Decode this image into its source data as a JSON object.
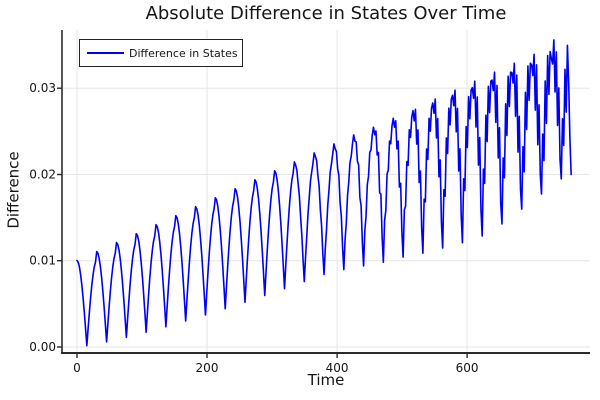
{
  "colors": {
    "line": "#0000f5",
    "grid": "#e6e6e6",
    "axis": "#2a2a2a",
    "text": "#151515",
    "background": "#ffffff",
    "legend_border": "#222222"
  },
  "chart_data": {
    "type": "line",
    "title": "Absolute Difference in States Over Time",
    "xlabel": "Time",
    "ylabel": "Difference",
    "legend_entries": [
      "Difference in States"
    ],
    "legend_position": "top-left",
    "grid": true,
    "xlim": [
      -23,
      789
    ],
    "ylim": [
      -0.0007,
      0.03675
    ],
    "x_ticks": [
      0,
      200,
      400,
      600
    ],
    "x_tick_labels": [
      "0",
      "200",
      "400",
      "600"
    ],
    "y_ticks": [
      0,
      0.01,
      0.02,
      0.03
    ],
    "y_tick_labels": [
      "0.00",
      "0.01",
      "0.02",
      "0.03"
    ],
    "series": [
      {
        "name": "Difference in States",
        "color": "#0000f5",
        "x_start": 0,
        "x_step": 1.9,
        "y": [
          0.01002,
          0.00983,
          0.00927,
          0.00835,
          0.00713,
          0.00564,
          0.00393,
          0.00208,
          0.00015,
          0.00208,
          0.00393,
          0.00564,
          0.00713,
          0.00835,
          0.00927,
          0.00983,
          0.01106,
          0.01086,
          0.01026,
          0.00929,
          0.00799,
          0.00641,
          0.0046,
          0.00263,
          0.00059,
          0.00263,
          0.0046,
          0.00641,
          0.00799,
          0.00929,
          0.01026,
          0.01086,
          0.0121,
          0.01189,
          0.01127,
          0.01024,
          0.00888,
          0.00722,
          0.00532,
          0.00326,
          0.00112,
          0.00326,
          0.00532,
          0.00722,
          0.00888,
          0.01024,
          0.01127,
          0.01189,
          0.01314,
          0.01292,
          0.01227,
          0.01121,
          0.00979,
          0.00807,
          0.00609,
          0.00394,
          0.00171,
          0.00394,
          0.00609,
          0.00807,
          0.00979,
          0.01121,
          0.01227,
          0.01292,
          0.01418,
          0.01395,
          0.01328,
          0.01218,
          0.01071,
          0.00892,
          0.00687,
          0.00465,
          0.00234,
          0.00465,
          0.00687,
          0.00892,
          0.01071,
          0.01218,
          0.01328,
          0.01395,
          0.01522,
          0.01499,
          0.01429,
          0.01316,
          0.01164,
          0.0098,
          0.00769,
          0.00539,
          0.00301,
          0.00539,
          0.00769,
          0.0098,
          0.01164,
          0.01316,
          0.01429,
          0.01499,
          0.01626,
          0.01602,
          0.01531,
          0.01414,
          0.01258,
          0.01069,
          0.00852,
          0.00616,
          0.00371,
          0.00616,
          0.00852,
          0.01069,
          0.01258,
          0.01414,
          0.01531,
          0.01602,
          0.0173,
          0.01706,
          0.01632,
          0.01513,
          0.01353,
          0.01159,
          0.00936,
          0.00695,
          0.00444,
          0.00695,
          0.00936,
          0.01159,
          0.01353,
          0.01513,
          0.01632,
          0.01706,
          0.01834,
          0.01809,
          0.01734,
          0.01612,
          0.01449,
          0.0125,
          0.01023,
          0.00775,
          0.00519,
          0.00775,
          0.01023,
          0.0125,
          0.01449,
          0.01612,
          0.01734,
          0.01809,
          0.01938,
          0.01913,
          0.01836,
          0.01711,
          0.01545,
          0.01343,
          0.01111,
          0.00859,
          0.00597,
          0.00859,
          0.01111,
          0.01343,
          0.01545,
          0.01711,
          0.01836,
          0.01913,
          0.02042,
          0.02016,
          0.01938,
          0.01811,
          0.01642,
          0.01436,
          0.01199,
          0.00942,
          0.00676,
          0.00942,
          0.01199,
          0.01436,
          0.01642,
          0.01811,
          0.01938,
          0.02016,
          0.02146,
          0.02111,
          0.02049,
          0.01896,
          0.01757,
          0.01514,
          0.01299,
          0.01015,
          0.00758,
          0.01036,
          0.01279,
          0.01542,
          0.0173,
          0.01924,
          0.02028,
          0.02125,
          0.0225,
          0.02208,
          0.02159,
          0.01989,
          0.0187,
          0.01595,
          0.01405,
          0.01088,
          0.00841,
          0.01137,
          0.01362,
          0.01644,
          0.0182,
          0.02032,
          0.02123,
          0.02236,
          0.02354,
          0.02297,
          0.02268,
          0.02068,
          0.0199,
          0.01669,
          0.01512,
          0.01154,
          0.00897,
          0.0124,
          0.0144,
          0.01754,
          0.01911,
          0.0214,
          0.02211,
          0.02354,
          0.02458,
          0.02386,
          0.02379,
          0.02154,
          0.02111,
          0.01735,
          0.01634,
          0.01214,
          0.0094,
          0.01345,
          0.01518,
          0.0188,
          0.01981,
          0.02256,
          0.02284,
          0.02458,
          0.02547,
          0.0246,
          0.02504,
          0.02226,
          0.02255,
          0.01787,
          0.01773,
          0.01275,
          0.00983,
          0.01466,
          0.01582,
          0.02006,
          0.0205,
          0.02387,
          0.02357,
          0.02562,
          0.02651,
          0.02548,
          0.02622,
          0.02297,
          0.02386,
          0.01854,
          0.01898,
          0.01338,
          0.01042,
          0.01589,
          0.01633,
          0.02149,
          0.02105,
          0.02518,
          0.0243,
          0.02666,
          0.0274,
          0.02621,
          0.02755,
          0.02353,
          0.02517,
          0.01906,
          0.0204,
          0.01385,
          0.01087,
          0.01713,
          0.01683,
          0.02294,
          0.02174,
          0.02651,
          0.02502,
          0.0277,
          0.02829,
          0.02709,
          0.02874,
          0.02424,
          0.02649,
          0.01973,
          0.02169,
          0.01448,
          0.01148,
          0.01823,
          0.01748,
          0.02424,
          0.02244,
          0.02769,
          0.02574,
          0.02874,
          0.02918,
          0.02797,
          0.02978,
          0.02494,
          0.02766,
          0.02041,
          0.02298,
          0.01526,
          0.01209,
          0.0195,
          0.01814,
          0.02555,
          0.02313,
          0.02902,
          0.02645,
          0.02978,
          0.03006,
          0.02884,
          0.03082,
          0.0255,
          0.02899,
          0.02109,
          0.02428,
          0.01591,
          0.01287,
          0.02063,
          0.01896,
          0.02687,
          0.02382,
          0.03021,
          0.02717,
          0.03082,
          0.03094,
          0.02972,
          0.03186,
          0.02605,
          0.03033,
          0.02192,
          0.02543,
          0.01671,
          0.01427,
          0.02192,
          0.01962,
          0.02819,
          0.02452,
          0.0314,
          0.02788,
          0.03186,
          0.03182,
          0.03059,
          0.0329,
          0.02675,
          0.03152,
          0.0226,
          0.02675,
          0.0183,
          0.01599,
          0.02322,
          0.0203,
          0.02952,
          0.02522,
          0.03259,
          0.0286,
          0.0329,
          0.03271,
          0.03147,
          0.03394,
          0.02746,
          0.03271,
          0.02345,
          0.02808,
          0.02005,
          0.01774,
          0.02468,
          0.0216,
          0.03085,
          0.02592,
          0.03379,
          0.02931,
          0.03425,
          0.03343,
          0.03281,
          0.0356,
          0.02956,
          0.03421,
          0.02569,
          0.03003,
          0.02182,
          0.0195,
          0.02647,
          0.02337,
          0.03219,
          0.02724,
          0.03498,
          0.03065,
          0.02414,
          0.02
        ]
      }
    ]
  }
}
